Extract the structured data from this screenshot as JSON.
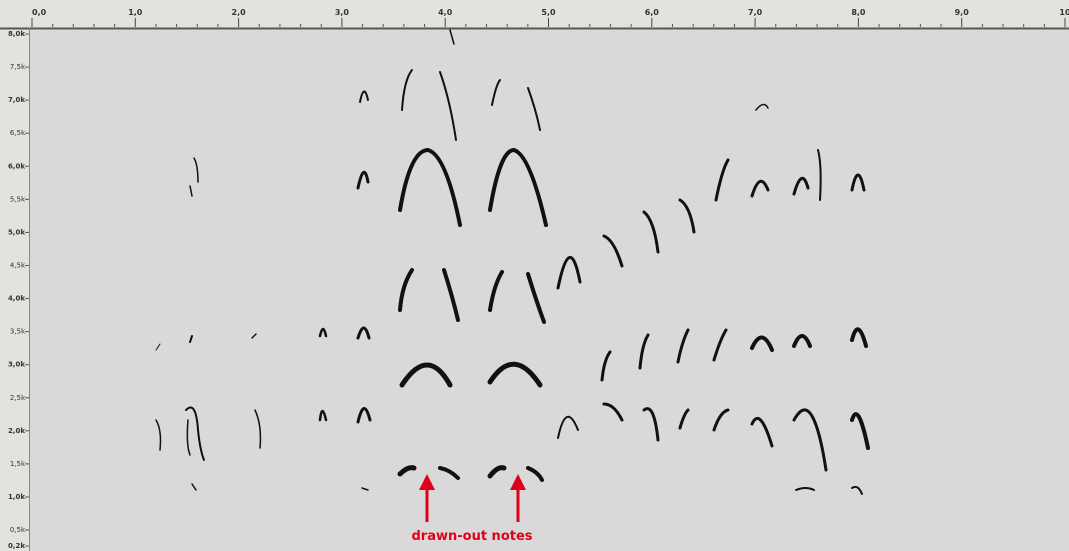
{
  "x_axis": {
    "labels": [
      "0,0",
      "1,0",
      "2,0",
      "3,0",
      "4,0",
      "5,0",
      "6,0",
      "7,0",
      "8,0",
      "9,0",
      "10"
    ]
  },
  "y_axis": {
    "labels": [
      "8,0k",
      "7,5k",
      "7,0k",
      "6,5k",
      "6,0k",
      "5,5k",
      "5,0k",
      "4,5k",
      "4,0k",
      "3,5k",
      "3,0k",
      "2,5k",
      "2,0k",
      "1,5k",
      "1,0k",
      "0,5k",
      "0,2k"
    ]
  },
  "annotation": {
    "text": "drawn-out notes"
  }
}
